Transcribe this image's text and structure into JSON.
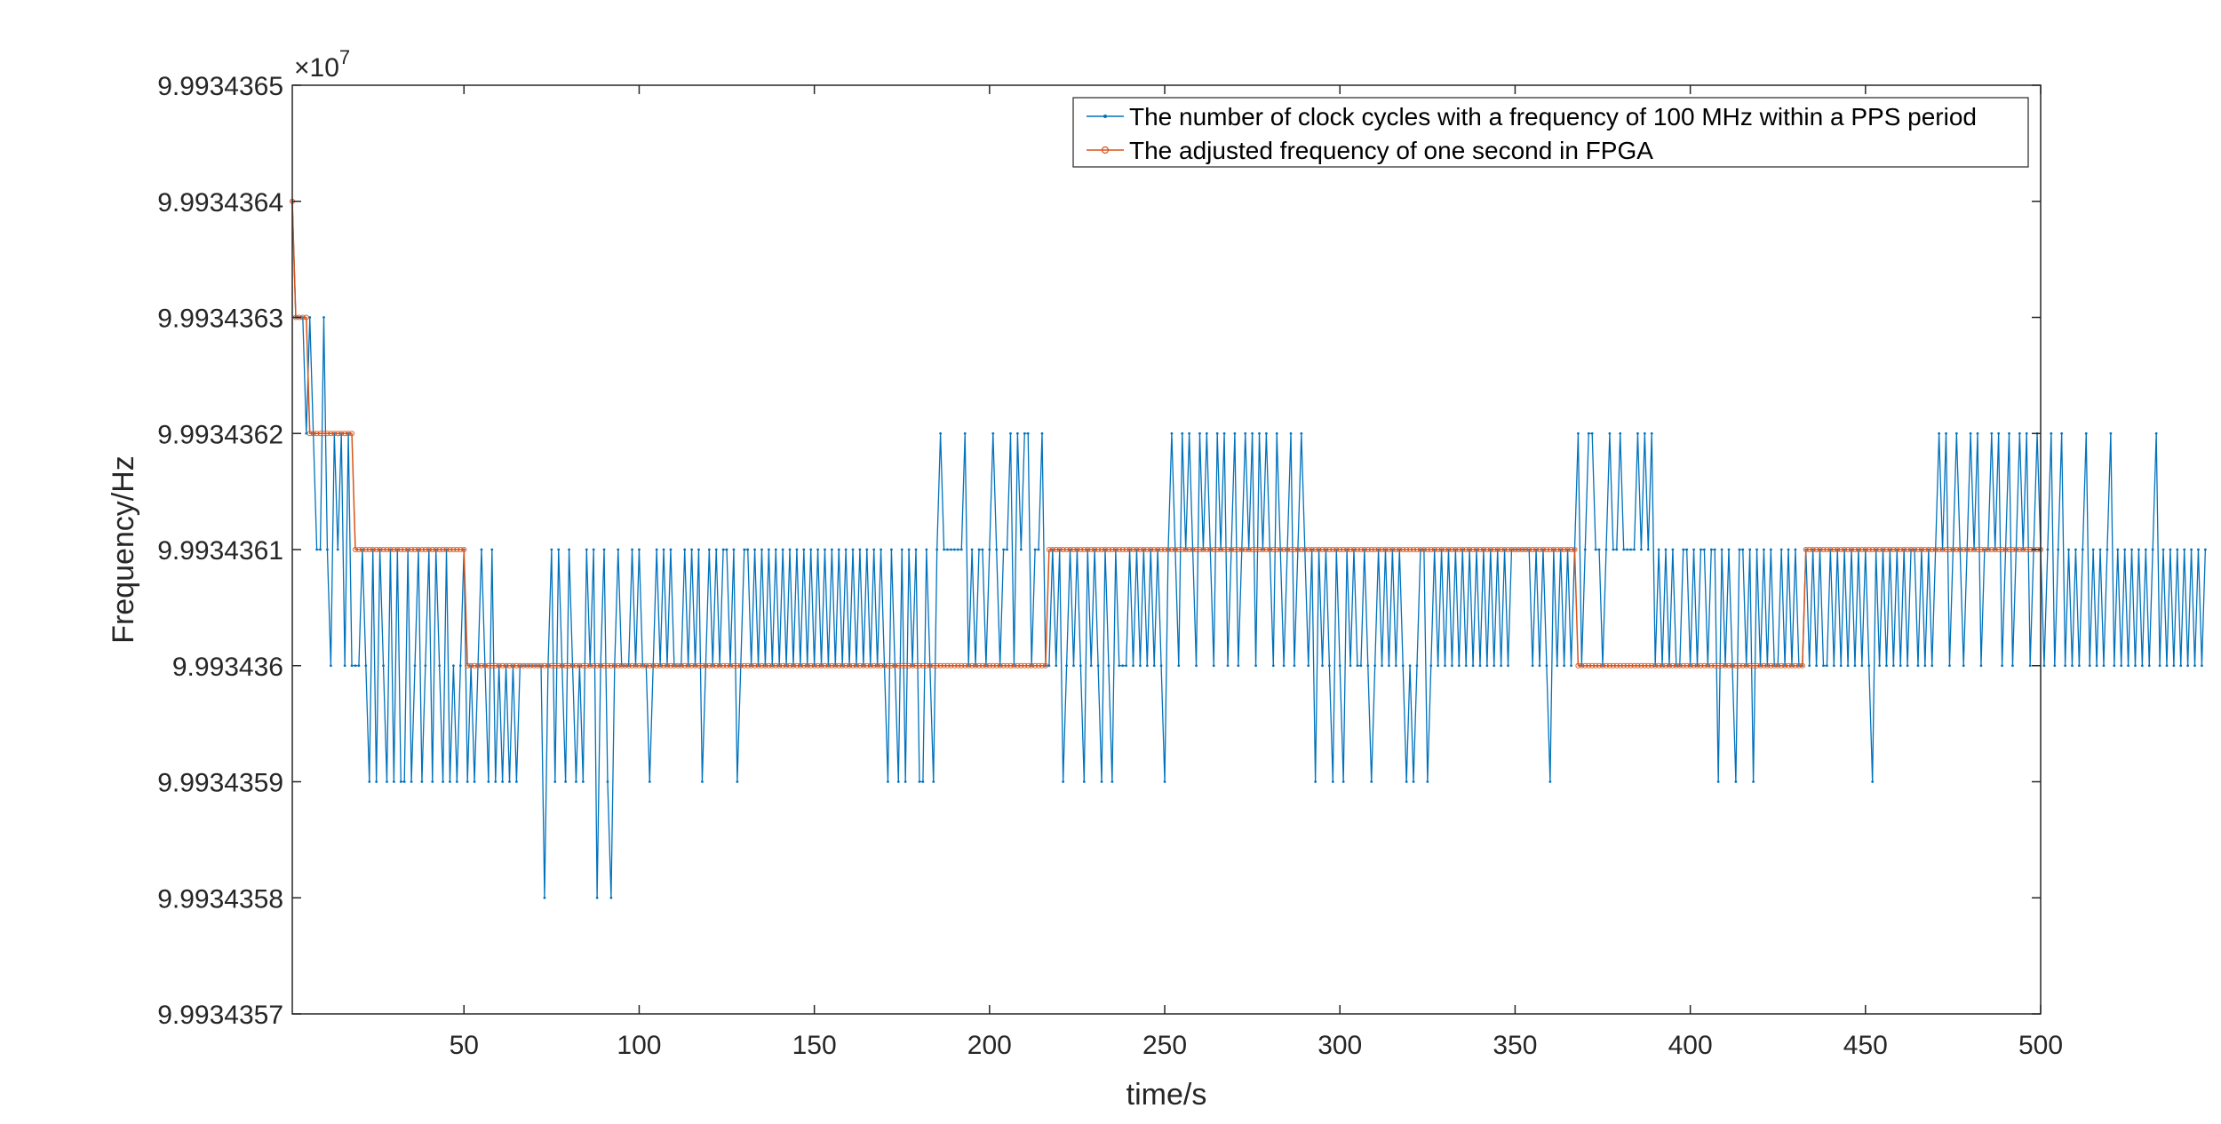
{
  "chart_data": {
    "type": "line",
    "title": "",
    "xlabel": "time/s",
    "ylabel": "Frequency/Hz",
    "xlim": [
      1,
      500
    ],
    "ylim": [
      99343570,
      99343650
    ],
    "y_exponent_prefix": "×10",
    "y_exponent_power": "7",
    "x_ticks": [
      50,
      100,
      150,
      200,
      250,
      300,
      350,
      400,
      450,
      500
    ],
    "x_tick_labels": [
      "50",
      "100",
      "150",
      "200",
      "250",
      "300",
      "350",
      "400",
      "450",
      "500"
    ],
    "y_ticks": [
      99343570,
      99343580,
      99343590,
      99343600,
      99343610,
      99343620,
      99343630,
      99343640,
      99343650
    ],
    "y_tick_labels": [
      "9.9934357",
      "9.9934358",
      "9.9934359",
      "9.993436",
      "9.9934361",
      "9.9934362",
      "9.9934363",
      "9.9934364",
      "9.9934365"
    ],
    "grid": false,
    "box": true,
    "legend_position": "top-right",
    "series": [
      {
        "name": "The number of clock cycles with a frequency of 100 MHz within a PPS period",
        "color": "#0072BD",
        "marker": "dot",
        "x_start": 1,
        "x_step": 1,
        "values": [
          99343640,
          99343630,
          99343630,
          99343630,
          99343620,
          99343630,
          99343620,
          99343610,
          99343610,
          99343630,
          99343610,
          99343600,
          99343620,
          99343610,
          99343620,
          99343600,
          99343620,
          99343600,
          99343600,
          99343600,
          99343610,
          99343600,
          99343590,
          99343610,
          99343590,
          99343610,
          99343600,
          99343590,
          99343610,
          99343590,
          99343610,
          99343590,
          99343590,
          99343610,
          99343590,
          99343600,
          99343610,
          99343590,
          99343600,
          99343610,
          99343590,
          99343610,
          99343600,
          99343590,
          99343610,
          99343590,
          99343600,
          99343590,
          99343600,
          99343610,
          99343590,
          99343600,
          99343590,
          99343600,
          99343610,
          99343600,
          99343590,
          99343610,
          99343590,
          99343600,
          99343590,
          99343600,
          99343590,
          99343600,
          99343590,
          99343600,
          99343600,
          99343600,
          99343600,
          99343600,
          99343600,
          99343600,
          99343580,
          99343600,
          99343610,
          99343590,
          99343610,
          99343600,
          99343590,
          99343610,
          99343600,
          99343590,
          99343600,
          99343590,
          99343610,
          99343600,
          99343610,
          99343580,
          99343600,
          99343610,
          99343590,
          99343580,
          99343600,
          99343610,
          99343600,
          99343600,
          99343600,
          99343610,
          99343600,
          99343610,
          99343600,
          99343600,
          99343590,
          99343600,
          99343610,
          99343600,
          99343610,
          99343600,
          99343610,
          99343600,
          99343600,
          99343600,
          99343610,
          99343600,
          99343610,
          99343600,
          99343610,
          99343590,
          99343600,
          99343610,
          99343600,
          99343610,
          99343600,
          99343610,
          99343610,
          99343600,
          99343610,
          99343590,
          99343600,
          99343610,
          99343610,
          99343600,
          99343610,
          99343600,
          99343610,
          99343600,
          99343610,
          99343600,
          99343610,
          99343600,
          99343610,
          99343600,
          99343610,
          99343600,
          99343610,
          99343600,
          99343610,
          99343600,
          99343610,
          99343600,
          99343610,
          99343600,
          99343610,
          99343600,
          99343610,
          99343600,
          99343610,
          99343600,
          99343610,
          99343600,
          99343610,
          99343600,
          99343610,
          99343600,
          99343610,
          99343600,
          99343610,
          99343600,
          99343610,
          99343600,
          99343590,
          99343610,
          99343600,
          99343590,
          99343610,
          99343590,
          99343610,
          99343600,
          99343610,
          99343590,
          99343590,
          99343610,
          99343600,
          99343590,
          99343610,
          99343620,
          99343610,
          99343610,
          99343610,
          99343610,
          99343610,
          99343610,
          99343620,
          99343600,
          99343610,
          99343600,
          99343610,
          99343610,
          99343600,
          99343610,
          99343620,
          99343610,
          99343600,
          99343610,
          99343610,
          99343620,
          99343600,
          99343620,
          99343610,
          99343620,
          99343620,
          99343600,
          99343610,
          99343610,
          99343620,
          99343600,
          99343600,
          99343610,
          99343600,
          99343610,
          99343590,
          99343600,
          99343610,
          99343600,
          99343610,
          99343600,
          99343590,
          99343610,
          99343600,
          99343610,
          99343600,
          99343590,
          99343610,
          99343600,
          99343590,
          99343610,
          99343600,
          99343600,
          99343600,
          99343610,
          99343600,
          99343610,
          99343600,
          99343610,
          99343600,
          99343610,
          99343600,
          99343610,
          99343600,
          99343590,
          99343610,
          99343620,
          99343610,
          99343600,
          99343620,
          99343610,
          99343620,
          99343610,
          99343600,
          99343620,
          99343610,
          99343620,
          99343610,
          99343600,
          99343620,
          99343610,
          99343620,
          99343600,
          99343610,
          99343620,
          99343600,
          99343610,
          99343620,
          99343610,
          99343620,
          99343600,
          99343620,
          99343610,
          99343620,
          99343610,
          99343600,
          99343620,
          99343610,
          99343600,
          99343610,
          99343620,
          99343600,
          99343610,
          99343620,
          99343610,
          99343600,
          99343610,
          99343590,
          99343610,
          99343600,
          99343610,
          99343600,
          99343590,
          99343610,
          99343600,
          99343590,
          99343610,
          99343600,
          99343610,
          99343600,
          99343600,
          99343610,
          99343600,
          99343590,
          99343600,
          99343610,
          99343600,
          99343610,
          99343600,
          99343610,
          99343600,
          99343610,
          99343600,
          99343590,
          99343600,
          99343590,
          99343600,
          99343610,
          99343610,
          99343590,
          99343600,
          99343610,
          99343600,
          99343610,
          99343600,
          99343610,
          99343600,
          99343610,
          99343600,
          99343610,
          99343600,
          99343610,
          99343600,
          99343610,
          99343600,
          99343610,
          99343600,
          99343610,
          99343600,
          99343610,
          99343600,
          99343610,
          99343600,
          99343610,
          99343610,
          99343610,
          99343610,
          99343610,
          99343610,
          99343600,
          99343610,
          99343600,
          99343610,
          99343600,
          99343590,
          99343610,
          99343600,
          99343610,
          99343600,
          99343610,
          99343600,
          99343610,
          99343620,
          99343600,
          99343610,
          99343620,
          99343620,
          99343610,
          99343610,
          99343600,
          99343610,
          99343620,
          99343610,
          99343610,
          99343620,
          99343610,
          99343610,
          99343610,
          99343610,
          99343620,
          99343610,
          99343620,
          99343610,
          99343620,
          99343600,
          99343610,
          99343600,
          99343610,
          99343600,
          99343610,
          99343600,
          99343600,
          99343610,
          99343610,
          99343600,
          99343610,
          99343600,
          99343610,
          99343610,
          99343600,
          99343610,
          99343610,
          99343590,
          99343610,
          99343600,
          99343610,
          99343600,
          99343590,
          99343610,
          99343610,
          99343600,
          99343610,
          99343590,
          99343610,
          99343600,
          99343610,
          99343600,
          99343610,
          99343600,
          99343600,
          99343610,
          99343600,
          99343610,
          99343600,
          99343610,
          99343600,
          99343600,
          99343610,
          99343600,
          99343610,
          99343600,
          99343610,
          99343600,
          99343600,
          99343610,
          99343600,
          99343610,
          99343600,
          99343610,
          99343600,
          99343610,
          99343600,
          99343610,
          99343600,
          99343610,
          99343600,
          99343590,
          99343610,
          99343600,
          99343610,
          99343600,
          99343610,
          99343600,
          99343610,
          99343600,
          99343610,
          99343600,
          99343610,
          99343610,
          99343600,
          99343610,
          99343600,
          99343610,
          99343600,
          99343610,
          99343620,
          99343610,
          99343620,
          99343600,
          99343610,
          99343620,
          99343610,
          99343600,
          99343610,
          99343620,
          99343610,
          99343620,
          99343600,
          99343610,
          99343610,
          99343620,
          99343610,
          99343620,
          99343600,
          99343610,
          99343620,
          99343600,
          99343610,
          99343620,
          99343610,
          99343620,
          99343600,
          99343610,
          99343620,
          99343610,
          99343600,
          99343610,
          99343620,
          99343600,
          99343610,
          99343620,
          99343600,
          99343610,
          99343600,
          99343610,
          99343600,
          99343610,
          99343620,
          99343600,
          99343610,
          99343600,
          99343610,
          99343600,
          99343610,
          99343620,
          99343600,
          99343610,
          99343600,
          99343610,
          99343600,
          99343610,
          99343600,
          99343610,
          99343600,
          99343610,
          99343600,
          99343610,
          99343620,
          99343600,
          99343610,
          99343600,
          99343610,
          99343600,
          99343610,
          99343600,
          99343610,
          99343600,
          99343610,
          99343600,
          99343610,
          99343600,
          99343610
        ]
      },
      {
        "name": "The adjusted frequency of one second in FPGA",
        "color": "#D95319",
        "marker": "circle",
        "steps": [
          {
            "x_from": 1,
            "x_to": 1,
            "y": 99343640
          },
          {
            "x_from": 2,
            "x_to": 5,
            "y": 99343630
          },
          {
            "x_from": 6,
            "x_to": 18,
            "y": 99343620
          },
          {
            "x_from": 19,
            "x_to": 50,
            "y": 99343610
          },
          {
            "x_from": 51,
            "x_to": 216,
            "y": 99343600
          },
          {
            "x_from": 217,
            "x_to": 367,
            "y": 99343610
          },
          {
            "x_from": 368,
            "x_to": 432,
            "y": 99343600
          },
          {
            "x_from": 433,
            "x_to": 500,
            "y": 99343610
          }
        ]
      }
    ]
  }
}
